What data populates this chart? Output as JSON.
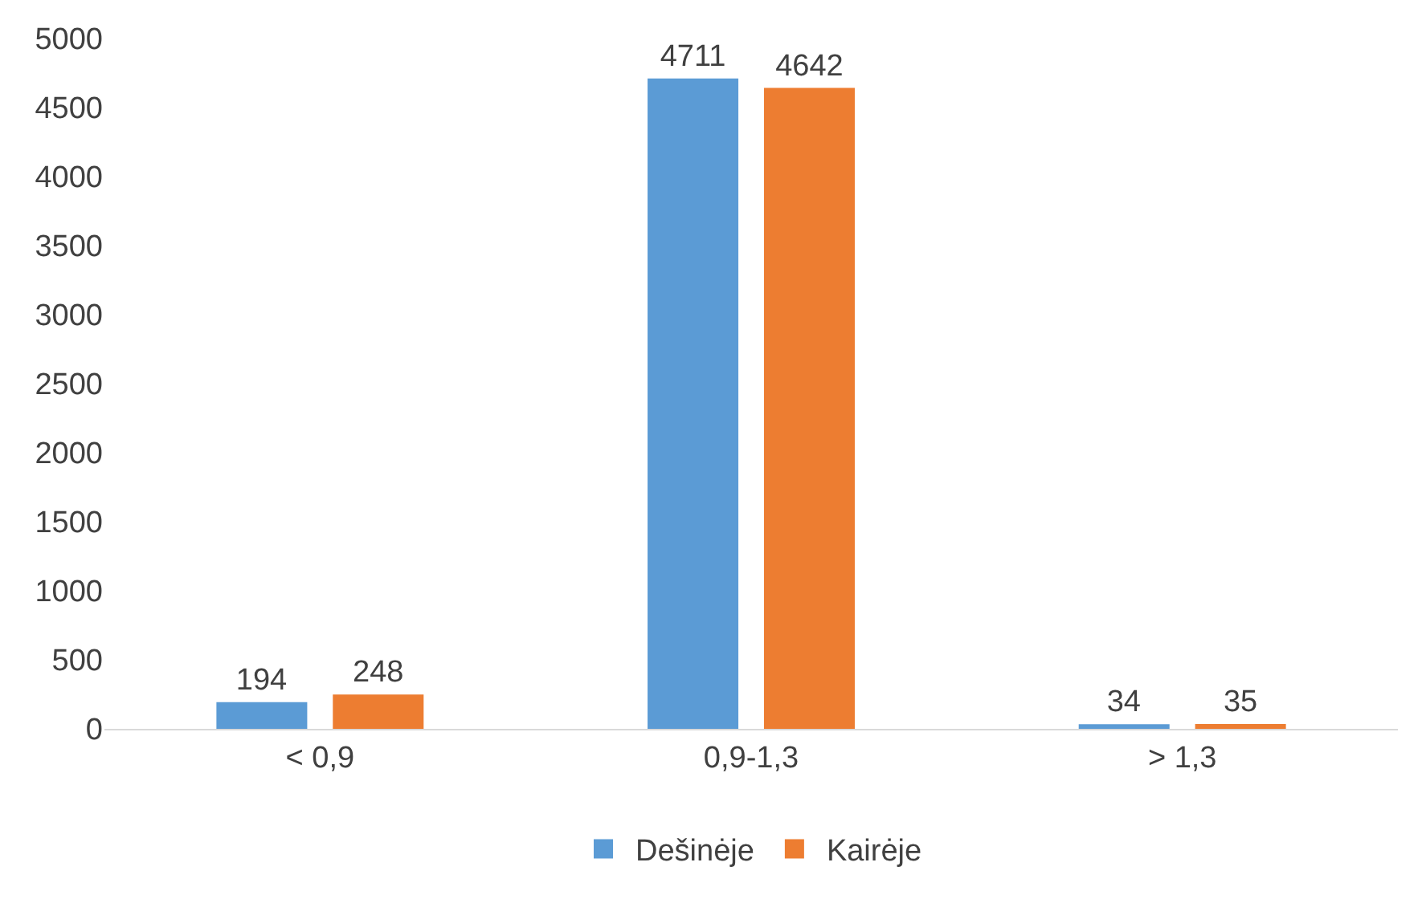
{
  "chart_data": {
    "type": "bar",
    "categories": [
      "< 0,9",
      "0,9-1,3",
      "> 1,3"
    ],
    "series": [
      {
        "name": "Dešinėje",
        "color": "#5b9bd5",
        "values": [
          194,
          4711,
          34
        ]
      },
      {
        "name": "Kairėje",
        "color": "#ed7d31",
        "values": [
          248,
          4642,
          35
        ]
      }
    ],
    "ylim": [
      0,
      5000
    ],
    "yticks": [
      0,
      500,
      1000,
      1500,
      2000,
      2500,
      3000,
      3500,
      4000,
      4500,
      5000
    ],
    "grid": false,
    "legend": "bottom",
    "data_labels": true
  }
}
